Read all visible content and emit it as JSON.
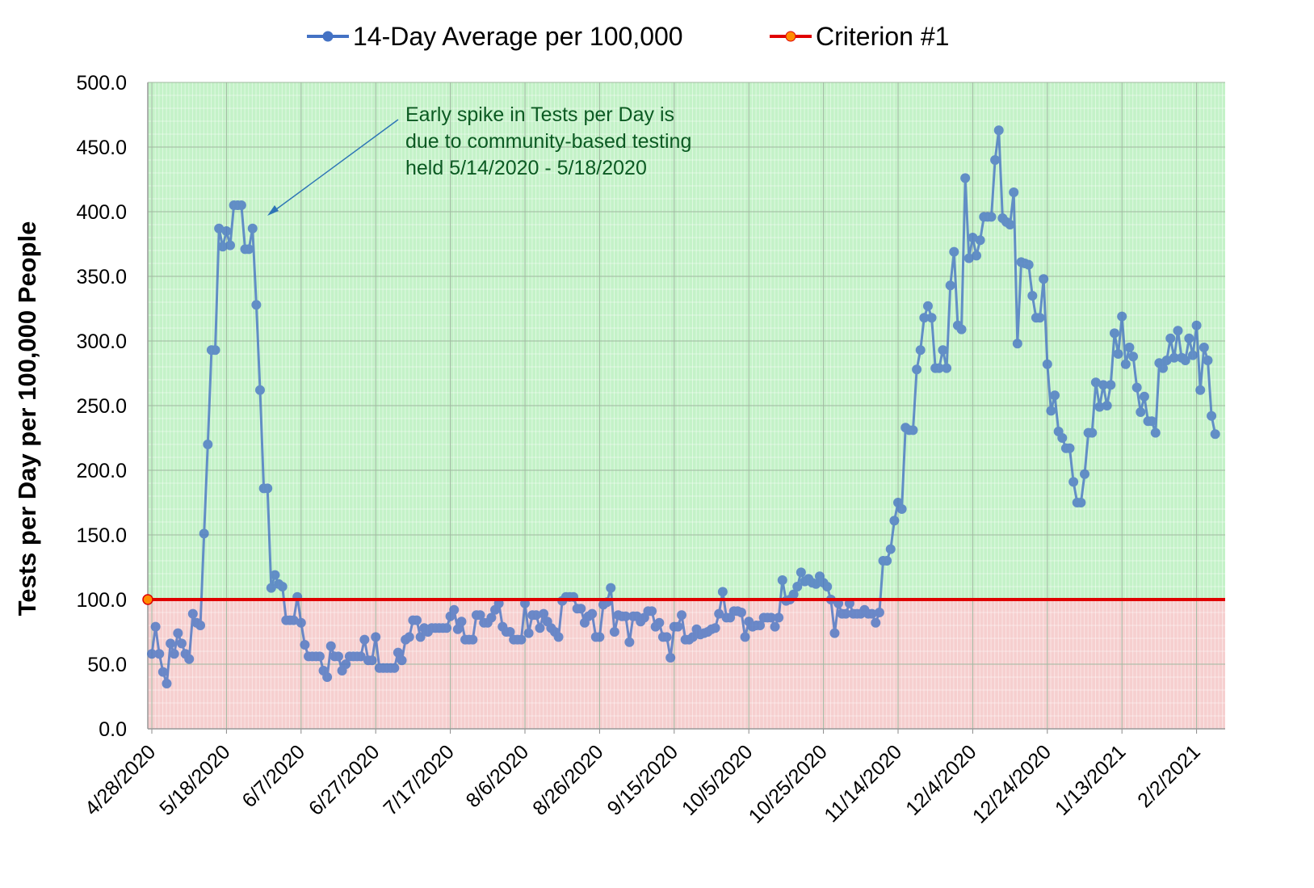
{
  "chart_data": {
    "type": "line",
    "ylabel": "Tests per Day per 100,000 People",
    "annotation": [
      "Early spike in Tests per Day is",
      "due to community-based testing",
      "held 5/14/2020 - 5/18/2020"
    ],
    "categories": [
      "4/28/2020",
      null,
      null,
      null,
      null,
      null,
      null,
      null,
      null,
      null,
      null,
      null,
      null,
      null,
      null,
      null,
      null,
      null,
      null,
      null,
      "5/18/2020",
      null,
      null,
      null,
      null,
      null,
      null,
      null,
      null,
      null,
      null,
      null,
      null,
      null,
      null,
      null,
      null,
      null,
      null,
      null,
      "6/7/2020",
      null,
      null,
      null,
      null,
      null,
      null,
      null,
      null,
      null,
      null,
      null,
      null,
      null,
      null,
      null,
      null,
      null,
      null,
      null,
      "6/27/2020",
      null,
      null,
      null,
      null,
      null,
      null,
      null,
      null,
      null,
      null,
      null,
      null,
      null,
      null,
      null,
      null,
      null,
      null,
      null,
      "7/17/2020",
      null,
      null,
      null,
      null,
      null,
      null,
      null,
      null,
      null,
      null,
      null,
      null,
      null,
      null,
      null,
      null,
      null,
      null,
      null,
      "8/6/2020",
      null,
      null,
      null,
      null,
      null,
      null,
      null,
      null,
      null,
      null,
      null,
      null,
      null,
      null,
      null,
      null,
      null,
      null,
      null,
      "8/26/2020",
      null,
      null,
      null,
      null,
      null,
      null,
      null,
      null,
      null,
      null,
      null,
      null,
      null,
      null,
      null,
      null,
      null,
      null,
      null,
      "9/15/2020",
      null,
      null,
      null,
      null,
      null,
      null,
      null,
      null,
      null,
      null,
      null,
      null,
      null,
      null,
      null,
      null,
      null,
      null,
      null,
      "10/5/2020",
      null,
      null,
      null,
      null,
      null,
      null,
      null,
      null,
      null,
      null,
      null,
      null,
      null,
      null,
      null,
      null,
      null,
      null,
      null,
      "10/25/2020",
      null,
      null,
      null,
      null,
      null,
      null,
      null,
      null,
      null,
      null,
      null,
      null,
      null,
      null,
      null,
      null,
      null,
      null,
      null,
      "11/14/2020",
      null,
      null,
      null,
      null,
      null,
      null,
      null,
      null,
      null,
      null,
      null,
      null,
      null,
      null,
      null,
      null,
      null,
      null,
      null,
      "12/4/2020",
      null,
      null,
      null,
      null,
      null,
      null,
      null,
      null,
      null,
      null,
      null,
      null,
      null,
      null,
      null,
      null,
      null,
      null,
      null,
      "12/24/2020",
      null,
      null,
      null,
      null,
      null,
      null,
      null,
      null,
      null,
      null,
      null,
      null,
      null,
      null,
      null,
      null,
      null,
      null,
      null,
      "1/13/2021",
      null,
      null,
      null,
      null,
      null,
      null,
      null,
      null,
      null,
      null,
      null,
      null,
      null,
      null,
      null,
      null,
      null,
      null,
      null,
      "2/2/2021",
      null,
      null,
      null,
      null,
      null
    ],
    "series": [
      {
        "name": "14-Day Average per 100,000",
        "color": "#4472c4",
        "values": [
          58,
          79,
          58,
          44,
          35,
          66,
          58,
          74,
          66,
          58,
          54,
          89,
          82,
          80,
          151,
          220,
          293,
          293,
          387,
          373,
          385,
          374,
          405,
          405,
          405,
          371,
          371,
          387,
          328,
          262,
          186,
          186,
          109,
          119,
          112,
          110,
          84,
          84,
          84,
          102,
          82,
          65,
          56,
          56,
          56,
          56,
          45,
          40,
          64,
          56,
          56,
          45,
          50,
          56,
          56,
          56,
          56,
          69,
          53,
          53,
          71,
          47,
          47,
          47,
          47,
          47,
          59,
          53,
          69,
          71,
          84,
          84,
          71,
          78,
          75,
          78,
          78,
          78,
          78,
          78,
          87,
          92,
          77,
          83,
          69,
          69,
          69,
          88,
          88,
          82,
          82,
          86,
          92,
          97,
          79,
          75,
          75,
          69,
          69,
          69,
          97,
          74,
          88,
          88,
          78,
          89,
          83,
          78,
          75,
          71,
          99,
          102,
          102,
          102,
          93,
          93,
          82,
          87,
          89,
          71,
          71,
          96,
          98,
          109,
          75,
          88,
          87,
          87,
          67,
          87,
          87,
          83,
          86,
          91,
          91,
          79,
          82,
          71,
          71,
          55,
          79,
          79,
          88,
          69,
          69,
          71,
          77,
          73,
          74,
          75,
          77,
          78,
          89,
          106,
          86,
          86,
          91,
          91,
          90,
          71,
          83,
          79,
          80,
          80,
          86,
          86,
          86,
          79,
          86,
          115,
          99,
          100,
          104,
          110,
          121,
          114,
          116,
          113,
          112,
          118,
          113,
          110,
          100,
          74,
          97,
          89,
          89,
          97,
          89,
          89,
          89,
          92,
          89,
          89,
          82,
          90,
          130,
          130,
          139,
          161,
          175,
          170,
          233,
          231,
          231,
          278,
          293,
          318,
          327,
          318,
          279,
          279,
          293,
          279,
          343,
          369,
          312,
          309,
          426,
          364,
          380,
          366,
          378,
          396,
          396,
          396,
          440,
          463,
          395,
          392,
          390,
          415,
          298,
          361,
          360,
          359,
          335,
          318,
          318,
          348,
          282,
          246,
          258,
          230,
          225,
          217,
          217,
          191,
          175,
          175,
          197,
          229,
          229,
          268,
          249,
          266,
          250,
          266,
          306,
          290,
          319,
          282,
          295,
          288,
          264,
          245,
          257,
          238,
          238,
          229,
          283,
          279,
          285,
          302,
          287,
          308,
          287,
          285,
          302,
          289,
          312,
          262,
          295,
          285,
          242,
          228
        ]
      },
      {
        "name": "Criterion #1",
        "color": "#e00000",
        "value": 100
      }
    ],
    "ylim": [
      0,
      500
    ],
    "yticks": [
      {
        "value": 0,
        "label": "0.0"
      },
      {
        "value": 50,
        "label": "50.0"
      },
      {
        "value": 100,
        "label": "100.0"
      },
      {
        "value": 150,
        "label": "150.0"
      },
      {
        "value": 200,
        "label": "200.0"
      },
      {
        "value": 250,
        "label": "250.0"
      },
      {
        "value": 300,
        "label": "300.0"
      },
      {
        "value": 350,
        "label": "350.0"
      },
      {
        "value": 400,
        "label": "400.0"
      },
      {
        "value": 450,
        "label": "450.0"
      },
      {
        "value": 500,
        "label": "500.0"
      }
    ],
    "grid": true,
    "legend": "top"
  }
}
